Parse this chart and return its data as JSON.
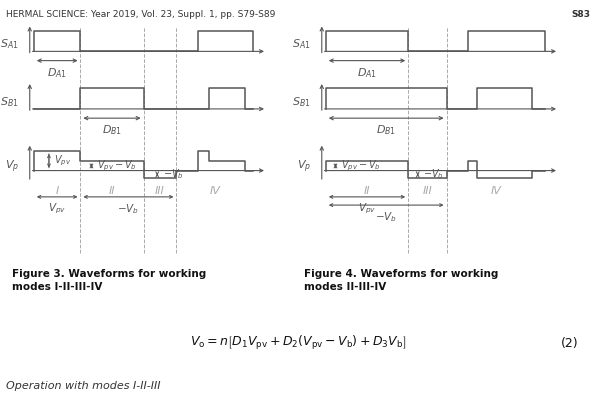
{
  "bg": "#ffffff",
  "line_color": "#555555",
  "dash_color": "#aaaaaa",
  "label_color": "#444444",
  "mode_label_color": "#aaaaaa",
  "text_color": "#222222",
  "header_text": "HERMAL SCIENCE: Year 2019, Vol. 23, Suppl. 1, pp. S79-S89",
  "header_right": "S83",
  "fig3_title": "Figure 3. Waveforms for working\nmodes I-II-III-IV",
  "fig4_title": "Figure 4. Waveforms for working\nmodes II-III-IV",
  "SA1_label": "$S_{A1}$",
  "SB1_label": "$S_{B1}$",
  "Vp_label": "$V_p$",
  "DA1_label": "$D_{A1}$",
  "DB1_label": "$D_{B1}$",
  "Vpv_label": "$V_{pv}$",
  "VpvVb_label": "$V_{pv}-V_b$",
  "mVb_label": "$-V_b$",
  "Vpv_bot_label": "$V_{pv}$",
  "mVb_bot_label": "$-V_b$",
  "mode_labels": [
    "I",
    "II",
    "III",
    "IV"
  ],
  "formula": "$V_o = n\\left[ D_1 V_{pv} + D_2(V_{pv} - V_b) + D_3 V_b \\right]$",
  "formula_num": "(2)",
  "op_text": "Operation with modes I-II-III",
  "lw": 1.1,
  "lw_thin": 0.8,
  "arrow_lw": 0.8
}
